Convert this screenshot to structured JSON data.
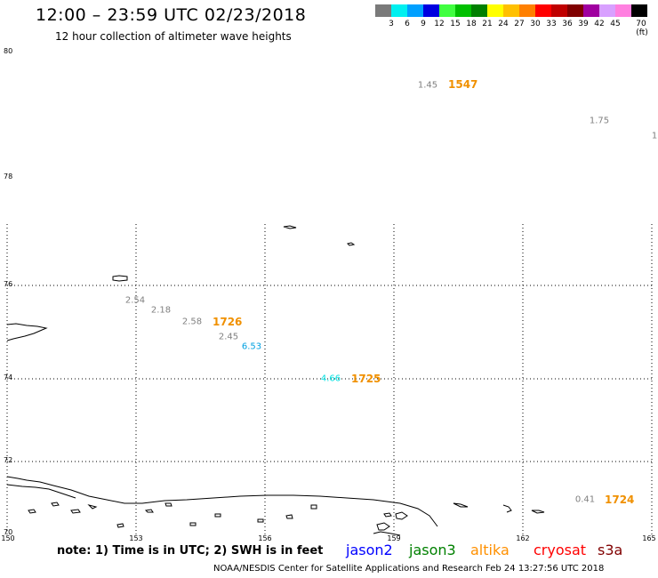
{
  "header": {
    "title": "12:00 – 23:59 UTC 02/23/2018",
    "subtitle": "12 hour collection of altimeter wave heights"
  },
  "scale": {
    "labels": [
      "3",
      "6",
      "9",
      "12",
      "15",
      "18",
      "21",
      "24",
      "27",
      "30",
      "33",
      "36",
      "39",
      "42",
      "45",
      "70 (ft)"
    ],
    "colors": [
      "#7a7a7a",
      "#00f0f0",
      "#00a0ff",
      "#0000e0",
      "#40ff40",
      "#00c000",
      "#008000",
      "#ffff00",
      "#ffc000",
      "#ff8000",
      "#ff0000",
      "#c00000",
      "#800000",
      "#a000a0",
      "#d8a0ff",
      "#ff80e0",
      "#000000"
    ]
  },
  "axes": {
    "lat_labels": [
      "80",
      "78",
      "76",
      "74",
      "72",
      "70"
    ],
    "lon_labels": [
      "150",
      "153",
      "156",
      "159",
      "162",
      "165"
    ]
  },
  "observations": [
    {
      "value": "1.45",
      "color": "#808080"
    },
    {
      "value": "1.75",
      "color": "#808080"
    },
    {
      "value": "1",
      "color": "#808080"
    },
    {
      "value": "2.54",
      "color": "#808080"
    },
    {
      "value": "2.18",
      "color": "#808080"
    },
    {
      "value": "2.58",
      "color": "#808080"
    },
    {
      "value": "2.45",
      "color": "#808080"
    },
    {
      "value": "6.53",
      "color": "#00a0e0"
    },
    {
      "value": "4.66",
      "color": "#00e0e0"
    },
    {
      "value": "0.41",
      "color": "#808080"
    }
  ],
  "time_labels": [
    "1547",
    "1726",
    "1725",
    "1724"
  ],
  "footer": {
    "note": "note: 1) Time is in UTC; 2) SWH is in feet",
    "satellites": [
      {
        "name": "jason2",
        "color": "#0000ff"
      },
      {
        "name": "jason3",
        "color": "#008000"
      },
      {
        "name": "altika",
        "color": "#ff9000"
      },
      {
        "name": "cryosat",
        "color": "#ff0000"
      },
      {
        "name": "s3a",
        "color": "#800000"
      }
    ],
    "credit": "NOAA/NESDIS Center for Satellite Applications and Research     Feb 24 13:27:56 UTC 2018"
  }
}
